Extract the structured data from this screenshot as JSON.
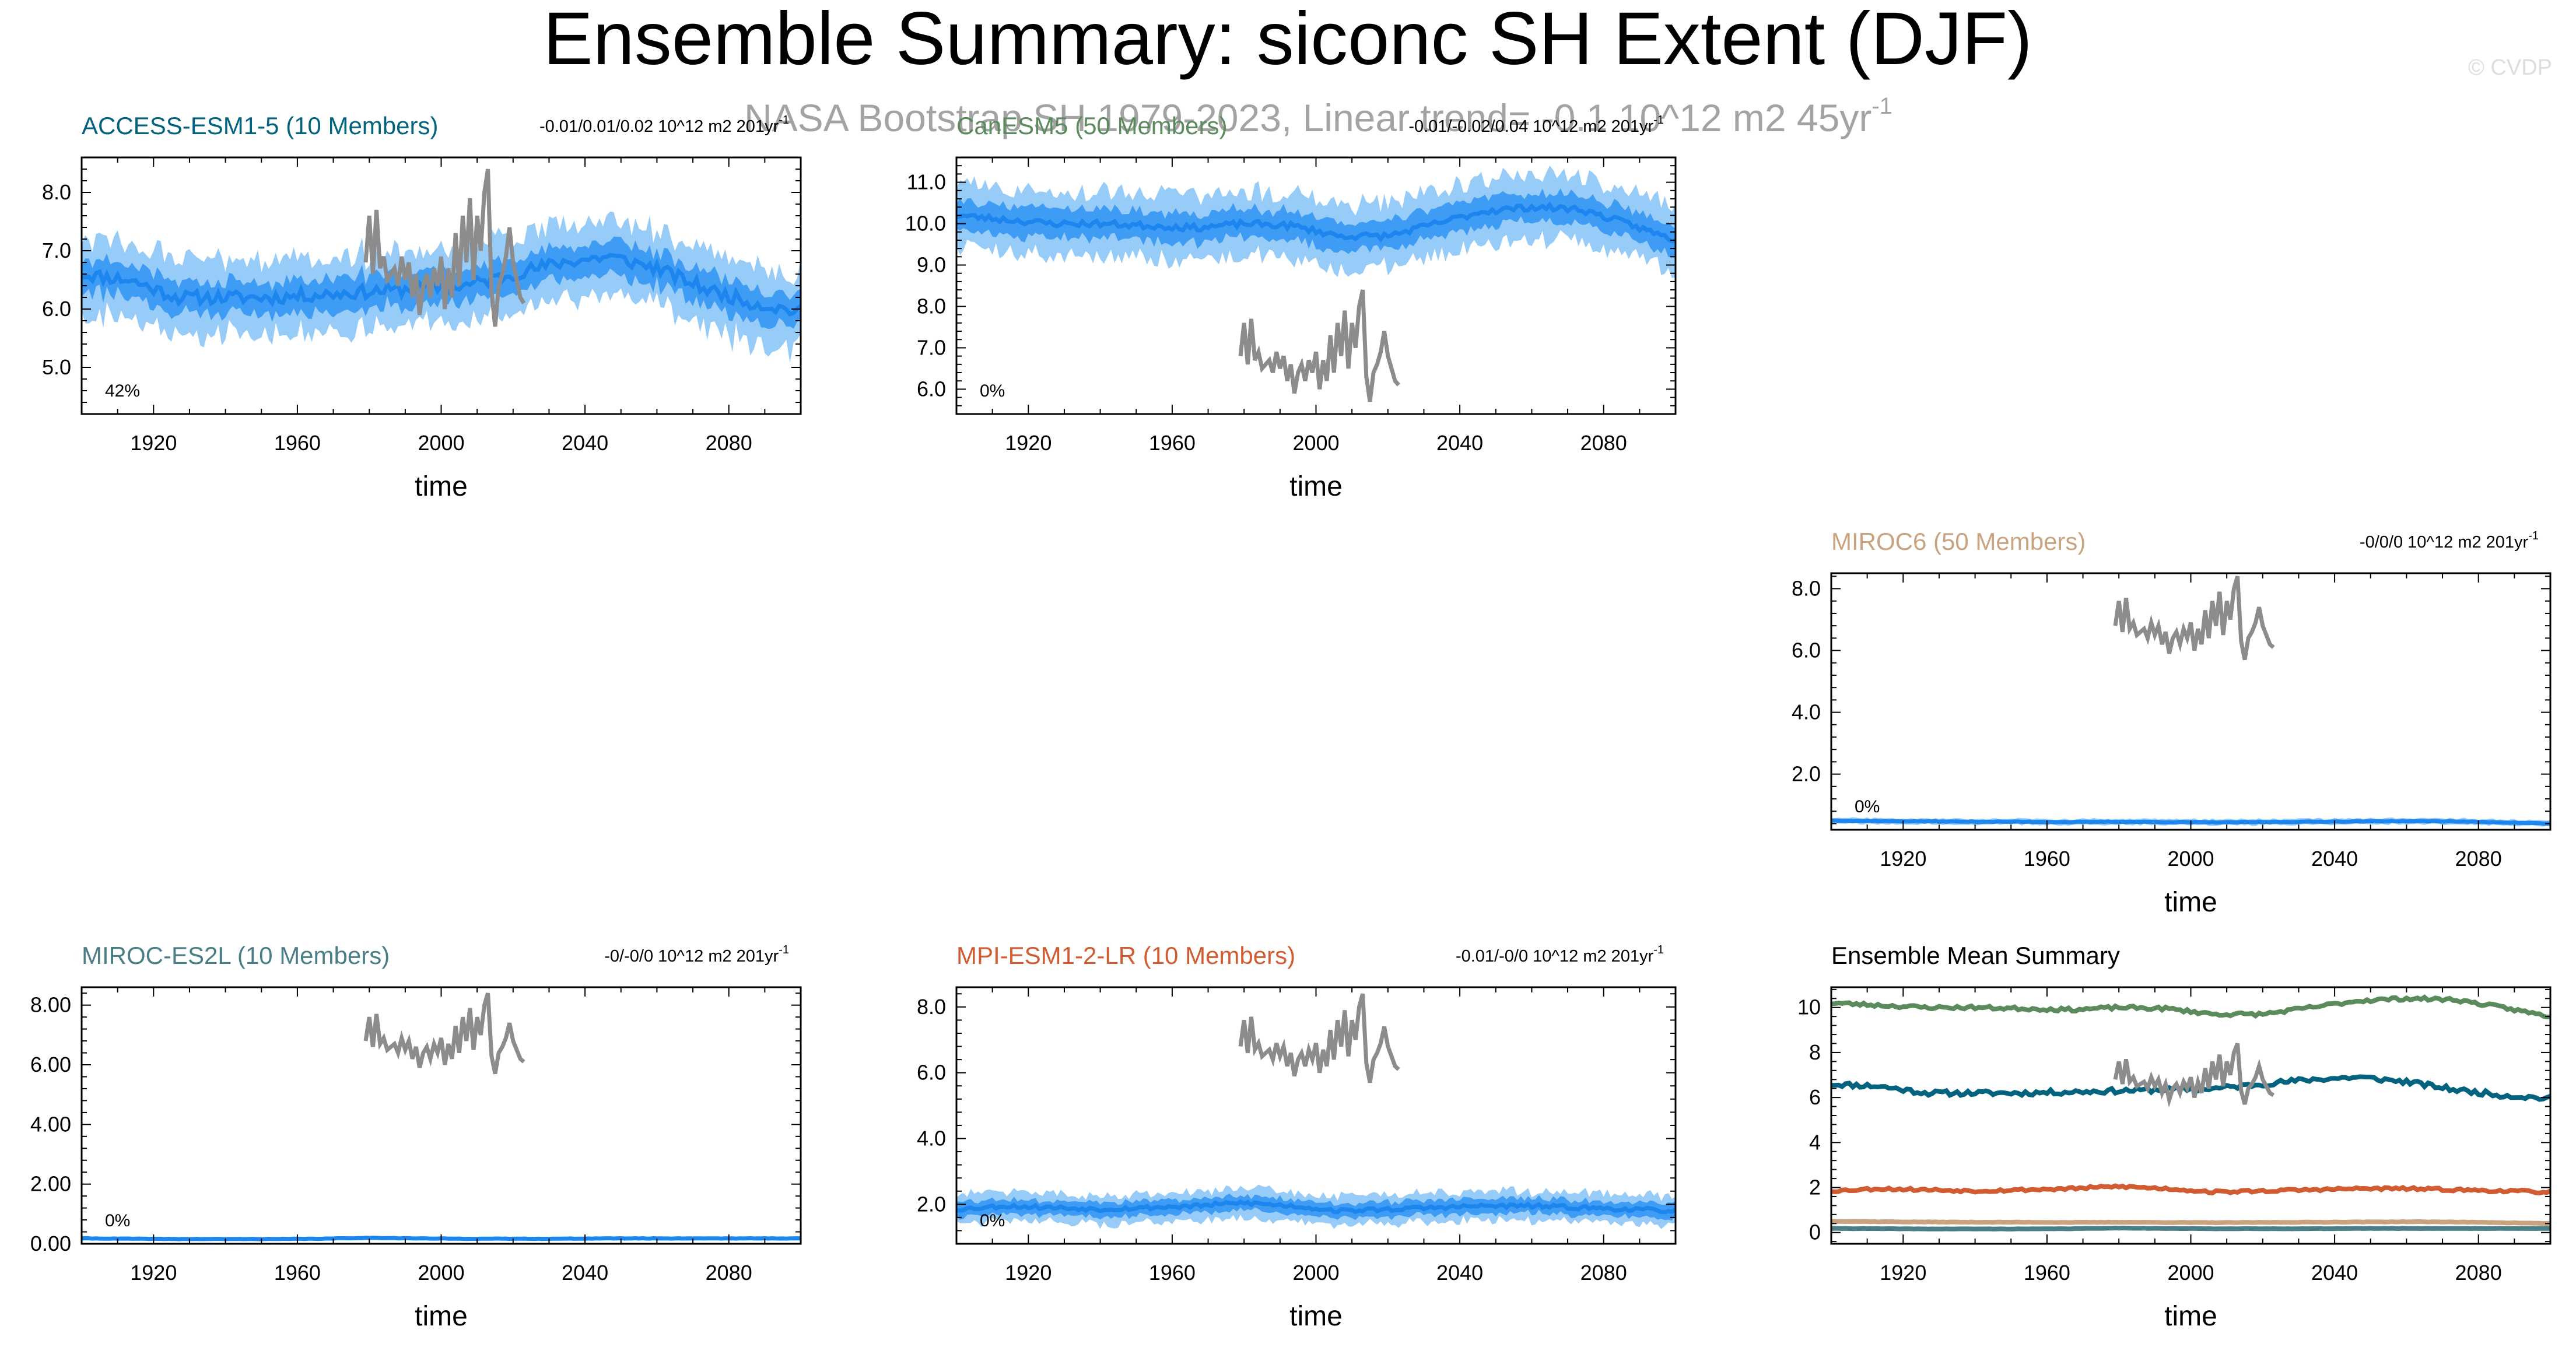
{
  "figure": {
    "title": "Ensemble Summary: siconc SH Extent (DJF)",
    "subtitle": "NASA Bootstrap SH 1979-2023, Linear trend= -0.1 10^12 m2 45yr",
    "subtitle_exp": "-1",
    "watermark": "© CVDP"
  },
  "colors": {
    "ens_mean": "#1c86ee",
    "band_inner": "#3f9cf5",
    "band_outer": "#97cbf8",
    "obs": "#8c8c8c",
    "access": "#03637f",
    "cesm": "#5b8a5c",
    "miroc6": "#c9a37f",
    "miroc_es2l": "#4a7e86",
    "mpi": "#d15c32",
    "summary_title": "#000000"
  },
  "observations": {
    "name": "NASA Bootstrap SH",
    "years": [
      1979,
      1980,
      1981,
      1982,
      1983,
      1984,
      1985,
      1986,
      1987,
      1988,
      1989,
      1990,
      1991,
      1992,
      1993,
      1994,
      1995,
      1996,
      1997,
      1998,
      1999,
      2000,
      2001,
      2002,
      2003,
      2004,
      2005,
      2006,
      2007,
      2008,
      2009,
      2010,
      2011,
      2012,
      2013,
      2014,
      2015,
      2016,
      2017,
      2018,
      2019,
      2020,
      2021,
      2022,
      2023
    ],
    "values": [
      6.8,
      7.6,
      6.6,
      7.7,
      6.7,
      6.9,
      6.5,
      6.6,
      6.7,
      6.4,
      6.9,
      6.5,
      6.8,
      6.2,
      6.6,
      5.9,
      6.4,
      6.6,
      6.2,
      6.7,
      6.4,
      6.9,
      6.0,
      6.7,
      6.2,
      7.3,
      6.4,
      7.6,
      6.8,
      7.9,
      6.5,
      7.6,
      7.0,
      8.0,
      8.4,
      6.3,
      5.7,
      6.4,
      6.6,
      6.9,
      7.4,
      6.8,
      6.5,
      6.2,
      6.1
    ]
  },
  "chart_data": [
    {
      "id": "access",
      "type": "line",
      "title": "ACCESS-ESM1-5 (10 Members)",
      "title_color_key": "access",
      "trend": "-0.01/0.01/0.02 10^12 m2 201yr",
      "trend_exp": "-1",
      "percent_label": "42%",
      "xlabel": "time",
      "xlim": [
        1900,
        2100
      ],
      "ylim": [
        4.2,
        8.6
      ],
      "x_ticks": [
        "1920",
        "1960",
        "2000",
        "2040",
        "2080"
      ],
      "y_ticks": [
        "5.0",
        "6.0",
        "7.0",
        "8.0"
      ],
      "y_tick_values": [
        5.0,
        6.0,
        7.0,
        8.0
      ],
      "mean_ctrl": [
        6.6,
        6.5,
        6.2,
        6.2,
        6.2,
        6.25,
        6.3,
        6.35,
        6.4,
        6.6,
        6.8,
        6.9,
        6.7,
        6.35,
        6.1,
        5.95
      ],
      "band_inner": 0.28,
      "band_outer": 0.62,
      "noise_inner": 0.22,
      "noise_outer": 0.38,
      "seed": 11,
      "obs_offset": 0.0,
      "obs_scale": 1.0
    },
    {
      "id": "cesm",
      "type": "line",
      "title": "CanESM5 (50 Members)",
      "title_color_key": "cesm",
      "trend": "-0.01/-0.02/0.04 10^12 m2 201yr",
      "trend_exp": "-1",
      "percent_label": "0%",
      "xlabel": "time",
      "xlim": [
        1900,
        2100
      ],
      "ylim": [
        5.4,
        11.6
      ],
      "x_ticks": [
        "1920",
        "1960",
        "2000",
        "2040",
        "2080"
      ],
      "y_ticks": [
        "6.0",
        "7.0",
        "8.0",
        "9.0",
        "10.0",
        "11.0"
      ],
      "y_tick_values": [
        6.0,
        7.0,
        8.0,
        9.0,
        10.0,
        11.0
      ],
      "mean_ctrl": [
        10.2,
        10.1,
        10.0,
        10.0,
        9.95,
        9.9,
        10.0,
        9.95,
        9.7,
        9.7,
        10.0,
        10.3,
        10.4,
        10.35,
        10.0,
        9.6
      ],
      "band_inner": 0.35,
      "band_outer": 0.75,
      "noise_inner": 0.15,
      "noise_outer": 0.3,
      "seed": 23,
      "obs_offset": 0.0,
      "obs_scale": 1.0
    },
    {
      "id": "miroc6",
      "type": "line",
      "title": "MIROC6 (50 Members)",
      "title_color_key": "miroc6",
      "trend": "-0/0/0 10^12 m2 201yr",
      "trend_exp": "-1",
      "percent_label": "0%",
      "xlabel": "time",
      "xlim": [
        1900,
        2100
      ],
      "ylim": [
        0.2,
        8.5
      ],
      "x_ticks": [
        "1920",
        "1960",
        "2000",
        "2040",
        "2080"
      ],
      "y_ticks": [
        "2.0",
        "4.0",
        "6.0",
        "8.0"
      ],
      "y_tick_values": [
        2.0,
        4.0,
        6.0,
        8.0
      ],
      "mean_ctrl": [
        0.5,
        0.48,
        0.47,
        0.46,
        0.46,
        0.45,
        0.46,
        0.45,
        0.44,
        0.45,
        0.46,
        0.47,
        0.48,
        0.47,
        0.44,
        0.4
      ],
      "band_inner": 0.04,
      "band_outer": 0.09,
      "noise_inner": 0.02,
      "noise_outer": 0.03,
      "seed": 37,
      "obs_offset": 0.0,
      "obs_scale": 1.0
    },
    {
      "id": "miroc_es2l",
      "type": "line",
      "title": "MIROC-ES2L (10 Members)",
      "title_color_key": "miroc_es2l",
      "trend": "-0/-0/0 10^12 m2 201yr",
      "trend_exp": "-1",
      "percent_label": "0%",
      "xlabel": "time",
      "xlim": [
        1900,
        2100
      ],
      "ylim": [
        0.0,
        8.6
      ],
      "x_ticks": [
        "1920",
        "1960",
        "2000",
        "2040",
        "2080"
      ],
      "y_ticks": [
        "0.00",
        "2.00",
        "4.00",
        "6.00",
        "8.00"
      ],
      "y_tick_values": [
        0.0,
        2.0,
        4.0,
        6.0,
        8.0
      ],
      "mean_ctrl": [
        0.18,
        0.17,
        0.16,
        0.16,
        0.16,
        0.17,
        0.2,
        0.18,
        0.17,
        0.17,
        0.17,
        0.18,
        0.18,
        0.18,
        0.18,
        0.18
      ],
      "band_inner": 0.025,
      "band_outer": 0.05,
      "noise_inner": 0.012,
      "noise_outer": 0.02,
      "seed": 41,
      "obs_offset": 0.0,
      "obs_scale": 1.0
    },
    {
      "id": "mpi",
      "type": "line",
      "title": "MPI-ESM1-2-LR (10 Members)",
      "title_color_key": "mpi",
      "trend": "-0.01/-0/0 10^12 m2 201yr",
      "trend_exp": "-1",
      "percent_label": "0%",
      "xlabel": "time",
      "xlim": [
        1900,
        2100
      ],
      "ylim": [
        0.8,
        8.6
      ],
      "x_ticks": [
        "1920",
        "1960",
        "2000",
        "2040",
        "2080"
      ],
      "y_ticks": [
        "2.0",
        "4.0",
        "6.0",
        "8.0"
      ],
      "y_tick_values": [
        2.0,
        4.0,
        6.0,
        8.0
      ],
      "mean_ctrl": [
        1.85,
        1.95,
        1.9,
        1.85,
        1.9,
        1.95,
        2.05,
        1.95,
        1.8,
        1.85,
        1.9,
        1.95,
        1.95,
        1.9,
        1.85,
        1.8
      ],
      "band_inner": 0.22,
      "band_outer": 0.42,
      "noise_inner": 0.12,
      "noise_outer": 0.2,
      "seed": 53,
      "obs_offset": 0.0,
      "obs_scale": 1.0
    },
    {
      "id": "summary",
      "type": "line",
      "title": "Ensemble Mean Summary",
      "title_color_key": "summary_title",
      "trend": "",
      "trend_exp": "",
      "percent_label": "",
      "xlabel": "time",
      "xlim": [
        1900,
        2100
      ],
      "ylim": [
        -0.5,
        10.9
      ],
      "x_ticks": [
        "1920",
        "1960",
        "2000",
        "2040",
        "2080"
      ],
      "y_ticks": [
        "0",
        "2",
        "4",
        "6",
        "8",
        "10"
      ],
      "y_tick_values": [
        0,
        2,
        4,
        6,
        8,
        10
      ],
      "series": [
        {
          "name": "CanESM5",
          "color_key": "cesm",
          "ref": "cesm"
        },
        {
          "name": "ACCESS-ESM1-5",
          "color_key": "access",
          "ref": "access"
        },
        {
          "name": "MPI-ESM1-2-LR",
          "color_key": "mpi",
          "ref": "mpi"
        },
        {
          "name": "MIROC6",
          "color_key": "miroc6",
          "ref": "miroc6"
        },
        {
          "name": "MIROC-ES2L",
          "color_key": "miroc_es2l",
          "ref": "miroc_es2l"
        }
      ]
    }
  ]
}
